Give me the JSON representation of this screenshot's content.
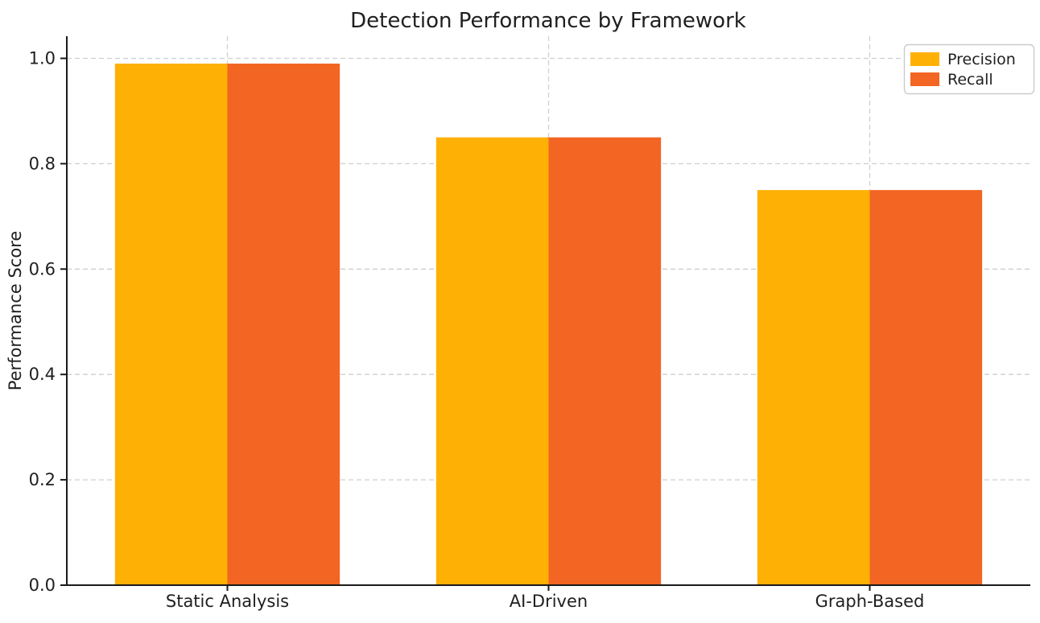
{
  "chart_data": {
    "type": "bar",
    "title": "Detection Performance by Framework",
    "ylabel": "Performance Score",
    "xlabel": "",
    "categories": [
      "Static Analysis",
      "AI-Driven",
      "Graph-Based"
    ],
    "series": [
      {
        "name": "Precision",
        "color": "#FFB005",
        "values": [
          0.99,
          0.85,
          0.75
        ]
      },
      {
        "name": "Recall",
        "color": "#F26522",
        "values": [
          0.99,
          0.85,
          0.75
        ]
      }
    ],
    "ylim": [
      0,
      1.042
    ],
    "yticks": [
      "0.0",
      "0.2",
      "0.4",
      "0.6",
      "0.8",
      "1.0"
    ],
    "bar_width": 0.35,
    "grid": true,
    "grid_style": "dashed",
    "legend_position": "upper right"
  },
  "colors": {
    "background": "#ffffff",
    "grid": "#cfcfcf",
    "axis": "#1a1a1a",
    "text": "#1f1f1f",
    "legend_border": "#cccccc",
    "legend_background": "#ffffff"
  }
}
